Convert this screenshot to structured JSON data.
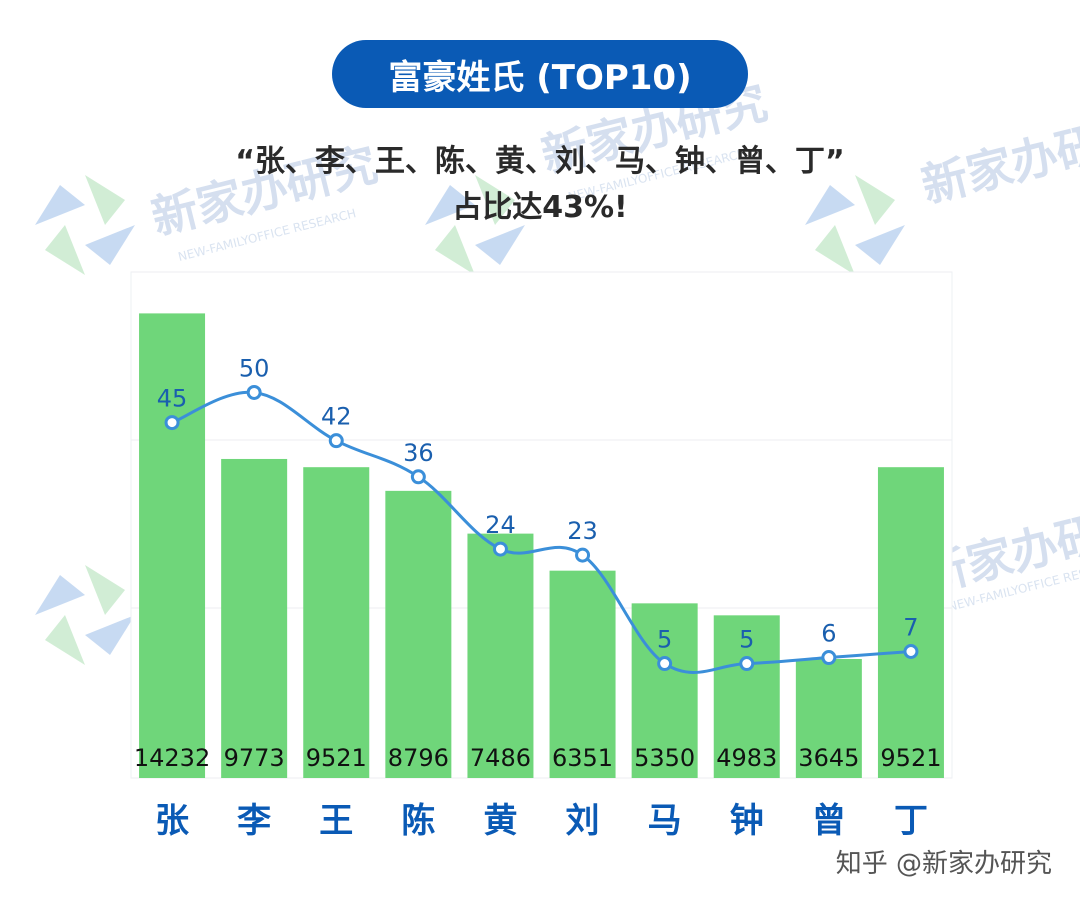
{
  "header": {
    "title": "富豪姓氏 (TOP10)",
    "subtitle_line1": "“张、李、王、陈、黄、刘、马、钟、曾、丁”",
    "subtitle_line2": "占比达43%!"
  },
  "watermark": {
    "text": "新家办研究",
    "sub": "NEW-FAMILYOFFICE RESEARCH"
  },
  "footer": {
    "text": "知乎 @新家办研究"
  },
  "colors": {
    "title_bg": "#0a5ab5",
    "bar": "#6fd67a",
    "line": "#3b8fd9",
    "category_text": "#0a5ab5",
    "point_label": "#1a5fae"
  },
  "chart_data": {
    "type": "bar",
    "categories": [
      "张",
      "李",
      "王",
      "陈",
      "黄",
      "刘",
      "马",
      "钟",
      "曾",
      "丁"
    ],
    "series": [
      {
        "type": "bar",
        "values": [
          14232,
          9773,
          9521,
          8796,
          7486,
          6351,
          5350,
          4983,
          3645,
          9521
        ]
      },
      {
        "type": "line",
        "values": [
          45,
          50,
          42,
          36,
          24,
          23,
          5,
          5,
          6,
          7
        ]
      }
    ],
    "grid": true
  }
}
